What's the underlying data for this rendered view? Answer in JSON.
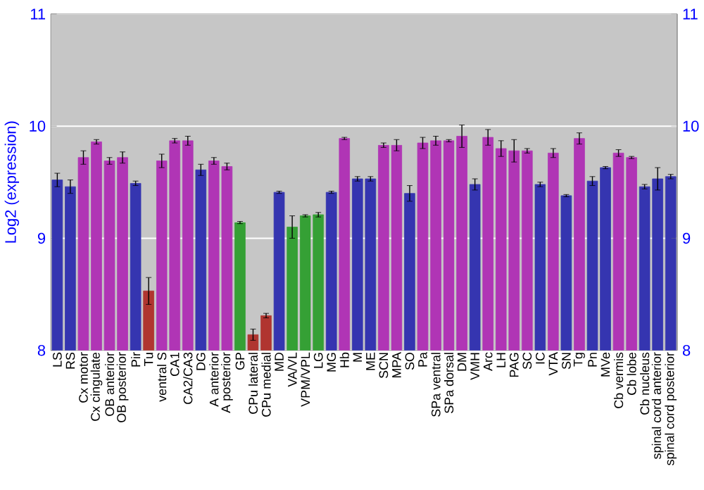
{
  "chart_data": {
    "type": "bar",
    "ylabel": "Log2 (expression)",
    "categories": [
      "LS",
      "RS",
      "Cx motor",
      "Cx cingulate",
      "OB anterior",
      "OB posterior",
      "Pir",
      "Tu",
      "ventral S",
      "CA1",
      "CA2/CA3",
      "DG",
      "A anterior",
      "A posterior",
      "GP",
      "CPu lateral",
      "CPu medial",
      "MD",
      "VA/VL",
      "VPM/VPL",
      "LG",
      "MG",
      "Hb",
      "M",
      "ME",
      "SCN",
      "MPA",
      "SO",
      "Pa",
      "SPa ventral",
      "SPa dorsal",
      "DM",
      "VMH",
      "Arc",
      "LH",
      "PAG",
      "SC",
      "IC",
      "VTA",
      "SN",
      "Tg",
      "Pn",
      "MVe",
      "Cb vermis",
      "Cb lobe",
      "Cb nucleus",
      "spinal cord anterior",
      "spinal cord posterior"
    ],
    "values": [
      9.52,
      9.46,
      9.72,
      9.86,
      9.69,
      9.72,
      9.49,
      8.53,
      9.69,
      9.87,
      9.87,
      9.61,
      9.69,
      9.64,
      9.14,
      8.14,
      8.31,
      9.41,
      9.1,
      9.2,
      9.21,
      9.41,
      9.89,
      9.53,
      9.53,
      9.83,
      9.83,
      9.4,
      9.85,
      9.87,
      9.87,
      9.91,
      9.48,
      9.9,
      9.8,
      9.78,
      9.78,
      9.48,
      9.76,
      9.38,
      9.89,
      9.51,
      9.63,
      9.76,
      9.72,
      9.46,
      9.53,
      9.55
    ],
    "errors": [
      0.06,
      0.06,
      0.06,
      0.02,
      0.03,
      0.05,
      0.02,
      0.12,
      0.06,
      0.02,
      0.04,
      0.05,
      0.03,
      0.03,
      0.01,
      0.05,
      0.02,
      0.01,
      0.1,
      0.01,
      0.02,
      0.01,
      0.01,
      0.02,
      0.02,
      0.02,
      0.05,
      0.07,
      0.05,
      0.04,
      0.01,
      0.1,
      0.05,
      0.07,
      0.07,
      0.1,
      0.02,
      0.02,
      0.04,
      0.01,
      0.05,
      0.04,
      0.01,
      0.03,
      0.01,
      0.02,
      0.1,
      0.02
    ],
    "colors": [
      "#3535b0",
      "#3535b0",
      "#b035b5",
      "#b035b5",
      "#b035b5",
      "#b035b5",
      "#3535b0",
      "#b03530",
      "#b035b5",
      "#b035b5",
      "#b035b5",
      "#3535b0",
      "#b035b5",
      "#b035b5",
      "#35a035",
      "#b03530",
      "#b03530",
      "#3535b0",
      "#35a035",
      "#35a035",
      "#35a035",
      "#3535b0",
      "#b035b5",
      "#3535b0",
      "#3535b0",
      "#b035b5",
      "#b035b5",
      "#3535b0",
      "#b035b5",
      "#b035b5",
      "#b035b5",
      "#b035b5",
      "#3535b0",
      "#b035b5",
      "#b035b5",
      "#b035b5",
      "#b035b5",
      "#3535b0",
      "#b035b5",
      "#3535b0",
      "#b035b5",
      "#3535b0",
      "#3535b0",
      "#b035b5",
      "#b035b5",
      "#3535b0",
      "#3535b0",
      "#3535b0"
    ],
    "ylim": [
      8,
      11
    ],
    "yticks": [
      8,
      9,
      10,
      11
    ],
    "y2lim": [
      8,
      11
    ],
    "y2ticks": [
      8,
      9,
      10,
      11
    ],
    "grid": "y"
  }
}
